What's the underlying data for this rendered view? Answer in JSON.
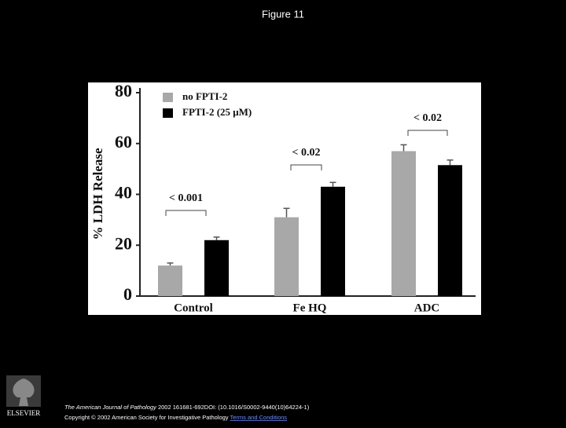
{
  "header": {
    "title": "Figure 11"
  },
  "chart_data": {
    "type": "bar",
    "y_label": "% LDH Release",
    "categories": [
      "Control",
      "Fe HQ",
      "ADC"
    ],
    "series": [
      {
        "name": "no FPTI-2",
        "color": "#a8a8a8",
        "values": [
          12,
          31,
          57
        ],
        "errors": [
          1,
          3.5,
          2.5
        ]
      },
      {
        "name": "FPTI-2 (25 μM)",
        "color": "#000000",
        "values": [
          22,
          43,
          51.5
        ],
        "errors": [
          1.2,
          1.7,
          2
        ]
      }
    ],
    "annotations": [
      "< 0.001",
      "< 0.02",
      "< 0.02"
    ],
    "ylim": [
      0,
      80
    ],
    "yticks": [
      0,
      20,
      40,
      60,
      80
    ]
  },
  "footer": {
    "logo_text": "ELSEVIER",
    "journal": "The American Journal of Pathology",
    "citation": "2002 161681-692DOI: (10.1016/S0002-9440(10)64224-1)",
    "copyright": "Copyright © 2002 American Society for Investigative Pathology",
    "terms": "Terms and Conditions"
  }
}
